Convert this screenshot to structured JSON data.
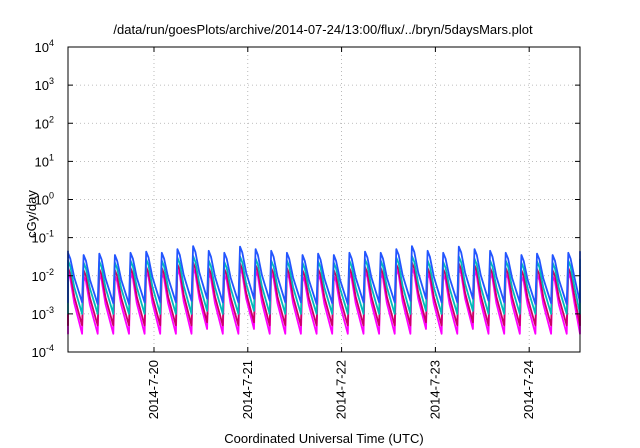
{
  "chart_data": {
    "type": "line",
    "title": "/data/run/goesPlots/archive/2014-07-24/13:00/flux/../bryn/5daysMars.plot",
    "xlabel": "Coordinated Universal Time (UTC)",
    "ylabel": "cGy/day",
    "y_scale": "log",
    "ylim": [
      0.0001,
      10000
    ],
    "y_ticks": [
      {
        "base": "10",
        "exp": "-4",
        "value": 0.0001
      },
      {
        "base": "10",
        "exp": "-3",
        "value": 0.001
      },
      {
        "base": "10",
        "exp": "-2",
        "value": 0.01
      },
      {
        "base": "10",
        "exp": "-1",
        "value": 0.1
      },
      {
        "base": "10",
        "exp": "0",
        "value": 1
      },
      {
        "base": "10",
        "exp": "1",
        "value": 10
      },
      {
        "base": "10",
        "exp": "2",
        "value": 100
      },
      {
        "base": "10",
        "exp": "3",
        "value": 1000
      },
      {
        "base": "10",
        "exp": "4",
        "value": 10000
      }
    ],
    "x_range": [
      "2014-07-19T02:00",
      "2014-07-24T13:00"
    ],
    "x_ticks": [
      {
        "label": "2014-7-20",
        "value": "2014-07-20"
      },
      {
        "label": "2014-7-21",
        "value": "2014-07-21"
      },
      {
        "label": "2014-7-22",
        "value": "2014-07-22"
      },
      {
        "label": "2014-7-23",
        "value": "2014-07-23"
      },
      {
        "label": "2014-7-24",
        "value": "2014-07-24"
      }
    ],
    "grid": true,
    "series": [
      {
        "color": "#ff00ff",
        "peaks": [
          0.012,
          0.01,
          0.011,
          0.01,
          0.012,
          0.013,
          0.012,
          0.015,
          0.016,
          0.012,
          0.011,
          0.016,
          0.014,
          0.012
        ],
        "troughs": [
          0.0003,
          0.0003,
          0.0003,
          0.0003,
          0.0003,
          0.0003,
          0.0003,
          0.0003,
          0.0004,
          0.0003,
          0.0003,
          0.0004,
          0.0003,
          0.0003
        ]
      },
      {
        "color": "#cc0066",
        "peaks": [
          0.016,
          0.014,
          0.015,
          0.014,
          0.016,
          0.017,
          0.016,
          0.02,
          0.022,
          0.016,
          0.015,
          0.021,
          0.019,
          0.016
        ],
        "troughs": [
          0.0005,
          0.0005,
          0.0005,
          0.0005,
          0.0005,
          0.0005,
          0.0005,
          0.0005,
          0.0006,
          0.0005,
          0.0005,
          0.0006,
          0.0005,
          0.0005
        ]
      },
      {
        "color": "#00bbbb",
        "peaks": [
          0.025,
          0.022,
          0.024,
          0.022,
          0.025,
          0.027,
          0.025,
          0.03,
          0.033,
          0.025,
          0.023,
          0.032,
          0.028,
          0.025
        ],
        "troughs": [
          0.001,
          0.001,
          0.001,
          0.001,
          0.001,
          0.001,
          0.001,
          0.001,
          0.0012,
          0.001,
          0.001,
          0.0012,
          0.001,
          0.001
        ]
      },
      {
        "color": "#2255ff",
        "peaks": [
          0.04,
          0.035,
          0.038,
          0.035,
          0.04,
          0.043,
          0.04,
          0.05,
          0.06,
          0.045,
          0.04,
          0.058,
          0.05,
          0.045
        ],
        "troughs": [
          0.002,
          0.0018,
          0.0019,
          0.0018,
          0.002,
          0.002,
          0.002,
          0.0022,
          0.0025,
          0.002,
          0.002,
          0.0025,
          0.0022,
          0.002
        ]
      }
    ]
  }
}
